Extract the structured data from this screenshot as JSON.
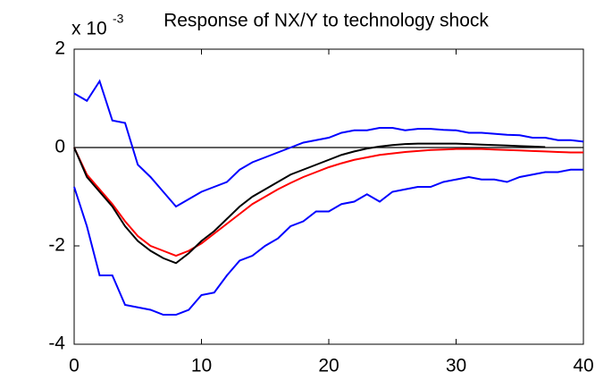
{
  "chart_data": {
    "type": "line",
    "title": "Response of NX/Y to technology shock",
    "y_multiplier": {
      "base": "x 10",
      "exponent": "-3"
    },
    "x": [
      0,
      1,
      2,
      3,
      4,
      5,
      6,
      7,
      8,
      9,
      10,
      11,
      12,
      13,
      14,
      15,
      16,
      17,
      18,
      19,
      20,
      21,
      22,
      23,
      24,
      25,
      26,
      27,
      28,
      29,
      30,
      31,
      32,
      33,
      34,
      35,
      36,
      37,
      38,
      39,
      40
    ],
    "series": [
      {
        "color": "#0000ff",
        "values": [
          1.1,
          0.95,
          1.35,
          0.55,
          0.5,
          -0.35,
          -0.6,
          -0.9,
          -1.2,
          -1.05,
          -0.9,
          -0.8,
          -0.7,
          -0.45,
          -0.3,
          -0.2,
          -0.1,
          0.0,
          0.1,
          0.15,
          0.2,
          0.3,
          0.35,
          0.35,
          0.4,
          0.4,
          0.35,
          0.38,
          0.38,
          0.36,
          0.35,
          0.3,
          0.3,
          0.28,
          0.26,
          0.25,
          0.2,
          0.2,
          0.15,
          0.15,
          0.12
        ]
      },
      {
        "color": "#0000ff",
        "values": [
          -0.8,
          -1.6,
          -2.6,
          -2.6,
          -3.2,
          -3.25,
          -3.3,
          -3.4,
          -3.4,
          -3.3,
          -3.0,
          -2.95,
          -2.6,
          -2.3,
          -2.2,
          -2.0,
          -1.85,
          -1.6,
          -1.5,
          -1.3,
          -1.3,
          -1.15,
          -1.1,
          -0.95,
          -1.1,
          -0.9,
          -0.85,
          -0.8,
          -0.8,
          -0.7,
          -0.65,
          -0.6,
          -0.65,
          -0.65,
          -0.7,
          -0.6,
          -0.55,
          -0.5,
          -0.5,
          -0.45,
          -0.45
        ]
      },
      {
        "color": "#ff0000",
        "values": [
          0,
          -0.55,
          -0.85,
          -1.15,
          -1.5,
          -1.8,
          -2.0,
          -2.1,
          -2.2,
          -2.1,
          -1.95,
          -1.75,
          -1.55,
          -1.35,
          -1.15,
          -1.0,
          -0.85,
          -0.72,
          -0.6,
          -0.5,
          -0.4,
          -0.32,
          -0.25,
          -0.2,
          -0.15,
          -0.12,
          -0.09,
          -0.07,
          -0.05,
          -0.04,
          -0.03,
          -0.03,
          -0.03,
          -0.04,
          -0.05,
          -0.06,
          -0.07,
          -0.08,
          -0.09,
          -0.1,
          -0.1
        ]
      },
      {
        "color": "#000000",
        "values": [
          0,
          -0.6,
          -0.9,
          -1.2,
          -1.6,
          -1.9,
          -2.1,
          -2.25,
          -2.35,
          -2.15,
          -1.9,
          -1.7,
          -1.45,
          -1.2,
          -1.0,
          -0.85,
          -0.7,
          -0.55,
          -0.45,
          -0.35,
          -0.25,
          -0.15,
          -0.08,
          -0.02,
          0.02,
          0.05,
          0.07,
          0.08,
          0.08,
          0.08,
          0.08,
          0.07,
          0.06,
          0.05,
          0.04,
          0.03,
          0.02,
          0.01,
          null,
          null,
          null
        ]
      }
    ],
    "hlines": [
      0
    ],
    "xlim": [
      0,
      40
    ],
    "xticks": [
      0,
      10,
      20,
      30,
      40
    ],
    "ylim": [
      -4,
      2
    ],
    "yticks": [
      -4,
      -2,
      0,
      2
    ],
    "grid": false
  }
}
